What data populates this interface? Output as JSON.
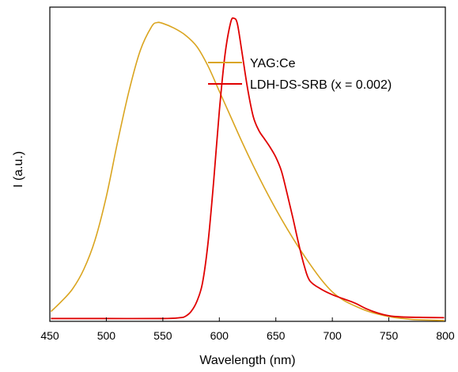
{
  "chart_data": {
    "type": "line",
    "title": "",
    "xlabel": "Wavelength (nm)",
    "ylabel": "I (a.u.)",
    "xlim": [
      450,
      800
    ],
    "ylim": [
      0,
      1.12
    ],
    "x_ticks": [
      450,
      500,
      550,
      600,
      650,
      700,
      750,
      800
    ],
    "x_tick_labels": [
      "450",
      "500",
      "550",
      "600",
      "650",
      "700",
      "750",
      "800"
    ],
    "y_ticks_shown": false,
    "grid": false,
    "legend": {
      "placement": "top-right"
    },
    "series": [
      {
        "name": "YAG:Ce",
        "color": "#DAA520",
        "points": [
          [
            451,
            0.035
          ],
          [
            460,
            0.07
          ],
          [
            470,
            0.115
          ],
          [
            480,
            0.185
          ],
          [
            490,
            0.29
          ],
          [
            500,
            0.445
          ],
          [
            510,
            0.64
          ],
          [
            520,
            0.82
          ],
          [
            530,
            0.965
          ],
          [
            540,
            1.05
          ],
          [
            545,
            1.065
          ],
          [
            550,
            1.062
          ],
          [
            560,
            1.045
          ],
          [
            570,
            1.02
          ],
          [
            580,
            0.98
          ],
          [
            590,
            0.91
          ],
          [
            600,
            0.82
          ],
          [
            610,
            0.73
          ],
          [
            620,
            0.64
          ],
          [
            630,
            0.555
          ],
          [
            640,
            0.475
          ],
          [
            650,
            0.4
          ],
          [
            660,
            0.33
          ],
          [
            670,
            0.265
          ],
          [
            680,
            0.205
          ],
          [
            690,
            0.15
          ],
          [
            700,
            0.105
          ],
          [
            710,
            0.075
          ],
          [
            720,
            0.055
          ],
          [
            730,
            0.038
          ],
          [
            740,
            0.026
          ],
          [
            750,
            0.017
          ],
          [
            760,
            0.011
          ],
          [
            770,
            0.007
          ],
          [
            780,
            0.005
          ],
          [
            799,
            0.003
          ]
        ]
      },
      {
        "name": "LDH-DS-SRB (x = 0.002)",
        "color": "#E00000",
        "points": [
          [
            451,
            0.01
          ],
          [
            500,
            0.01
          ],
          [
            550,
            0.01
          ],
          [
            565,
            0.013
          ],
          [
            570,
            0.018
          ],
          [
            575,
            0.035
          ],
          [
            580,
            0.07
          ],
          [
            585,
            0.135
          ],
          [
            590,
            0.28
          ],
          [
            595,
            0.5
          ],
          [
            600,
            0.75
          ],
          [
            605,
            0.95
          ],
          [
            610,
            1.065
          ],
          [
            613,
            1.08
          ],
          [
            616,
            1.06
          ],
          [
            620,
            0.96
          ],
          [
            625,
            0.83
          ],
          [
            630,
            0.73
          ],
          [
            635,
            0.68
          ],
          [
            640,
            0.65
          ],
          [
            645,
            0.62
          ],
          [
            650,
            0.585
          ],
          [
            655,
            0.535
          ],
          [
            660,
            0.455
          ],
          [
            665,
            0.37
          ],
          [
            670,
            0.28
          ],
          [
            675,
            0.2
          ],
          [
            680,
            0.145
          ],
          [
            690,
            0.115
          ],
          [
            700,
            0.095
          ],
          [
            710,
            0.08
          ],
          [
            720,
            0.065
          ],
          [
            730,
            0.045
          ],
          [
            740,
            0.03
          ],
          [
            750,
            0.02
          ],
          [
            760,
            0.016
          ],
          [
            780,
            0.014
          ],
          [
            799,
            0.013
          ]
        ]
      }
    ]
  }
}
